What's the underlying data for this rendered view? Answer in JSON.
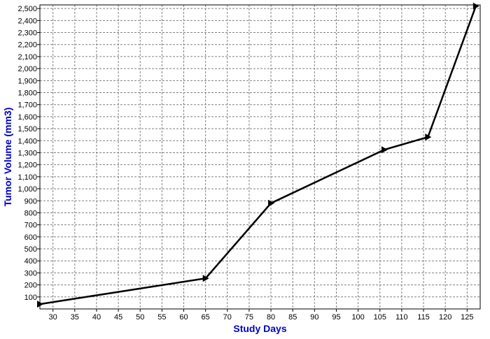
{
  "chart_data": {
    "type": "line",
    "title": "",
    "xlabel": "Study Days",
    "ylabel": "Tumor Volume (mm3)",
    "xlim": [
      27,
      128
    ],
    "ylim": [
      0,
      2530
    ],
    "x_ticks": [
      30,
      35,
      40,
      45,
      50,
      55,
      60,
      65,
      70,
      75,
      80,
      85,
      90,
      95,
      100,
      105,
      110,
      115,
      120,
      125
    ],
    "y_ticks": [
      100,
      200,
      300,
      400,
      500,
      600,
      700,
      800,
      900,
      1000,
      1100,
      1200,
      1300,
      1400,
      1500,
      1600,
      1700,
      1800,
      1900,
      2000,
      2100,
      2200,
      2300,
      2400,
      2500
    ],
    "y_tick_labels": [
      "100",
      "200",
      "300",
      "400",
      "500",
      "600",
      "700",
      "800",
      "900",
      "1,000",
      "1,100",
      "1,200",
      "1,300",
      "1,400",
      "1,500",
      "1,600",
      "1,700",
      "1,800",
      "1,900",
      "2,000",
      "2,100",
      "2,200",
      "2,300",
      "2,400",
      "2,500"
    ],
    "grid": true,
    "series": [
      {
        "x": [
          27,
          65,
          80,
          106,
          116,
          127
        ],
        "y": [
          40,
          255,
          880,
          1325,
          1430,
          2520
        ]
      }
    ],
    "colors": {
      "axis_title": "#0000cc",
      "line": "#000000",
      "grid": "#808080"
    }
  }
}
